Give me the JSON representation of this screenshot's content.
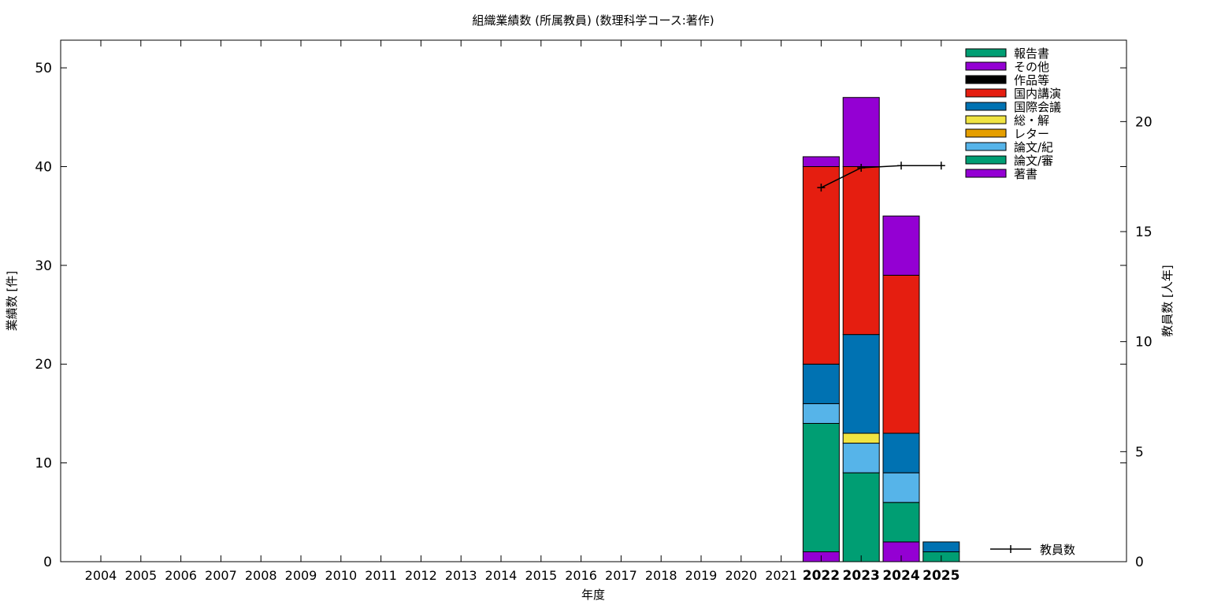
{
  "chart_data": {
    "type": "bar",
    "stacked": true,
    "title": "組織業績数 (所属教員) (数理科学コース:著作)",
    "xlabel": "年度",
    "ylabel": "業績数 [件]",
    "y2label": "教員数 [人年]",
    "ylim": [
      0,
      52.8
    ],
    "y2lim": [
      0,
      23.7
    ],
    "yticks": [
      "0",
      "10",
      "20",
      "30",
      "40",
      "50"
    ],
    "y2ticks": [
      "0",
      "5",
      "10",
      "15",
      "20"
    ],
    "grid": false,
    "legend_position": "top-right",
    "categories": [
      "2004",
      "2005",
      "2006",
      "2007",
      "2008",
      "2009",
      "2010",
      "2011",
      "2012",
      "2013",
      "2014",
      "2015",
      "2016",
      "2017",
      "2018",
      "2019",
      "2020",
      "2021",
      "2022",
      "2023",
      "2024",
      "2025"
    ],
    "bold_categories": [
      "2022",
      "2023",
      "2024",
      "2025"
    ],
    "series": [
      {
        "name": "著書",
        "color": "#9400d3",
        "values": [
          0,
          0,
          0,
          0,
          0,
          0,
          0,
          0,
          0,
          0,
          0,
          0,
          0,
          0,
          0,
          0,
          0,
          0,
          1,
          0,
          2,
          0
        ]
      },
      {
        "name": "論文/審",
        "color": "#009e73",
        "values": [
          0,
          0,
          0,
          0,
          0,
          0,
          0,
          0,
          0,
          0,
          0,
          0,
          0,
          0,
          0,
          0,
          0,
          0,
          13,
          9,
          4,
          1
        ]
      },
      {
        "name": "論文/紀",
        "color": "#56b4e9",
        "values": [
          0,
          0,
          0,
          0,
          0,
          0,
          0,
          0,
          0,
          0,
          0,
          0,
          0,
          0,
          0,
          0,
          0,
          0,
          2,
          3,
          3,
          0
        ]
      },
      {
        "name": "レター",
        "color": "#e69f00",
        "values": [
          0,
          0,
          0,
          0,
          0,
          0,
          0,
          0,
          0,
          0,
          0,
          0,
          0,
          0,
          0,
          0,
          0,
          0,
          0,
          0,
          0,
          0
        ]
      },
      {
        "name": "総・解",
        "color": "#f0e442",
        "values": [
          0,
          0,
          0,
          0,
          0,
          0,
          0,
          0,
          0,
          0,
          0,
          0,
          0,
          0,
          0,
          0,
          0,
          0,
          0,
          1,
          0,
          0
        ]
      },
      {
        "name": "国際会議",
        "color": "#0072b2",
        "values": [
          0,
          0,
          0,
          0,
          0,
          0,
          0,
          0,
          0,
          0,
          0,
          0,
          0,
          0,
          0,
          0,
          0,
          0,
          4,
          10,
          4,
          1
        ]
      },
      {
        "name": "国内講演",
        "color": "#e51e10",
        "values": [
          0,
          0,
          0,
          0,
          0,
          0,
          0,
          0,
          0,
          0,
          0,
          0,
          0,
          0,
          0,
          0,
          0,
          0,
          20,
          17,
          16,
          0
        ]
      },
      {
        "name": "作品等",
        "color": "#000000",
        "values": [
          0,
          0,
          0,
          0,
          0,
          0,
          0,
          0,
          0,
          0,
          0,
          0,
          0,
          0,
          0,
          0,
          0,
          0,
          0,
          0,
          0,
          0
        ]
      },
      {
        "name": "その他",
        "color": "#9400d3",
        "values": [
          0,
          0,
          0,
          0,
          0,
          0,
          0,
          0,
          0,
          0,
          0,
          0,
          0,
          0,
          0,
          0,
          0,
          0,
          1,
          7,
          6,
          0
        ]
      },
      {
        "name": "報告書",
        "color": "#009e73",
        "values": [
          0,
          0,
          0,
          0,
          0,
          0,
          0,
          0,
          0,
          0,
          0,
          0,
          0,
          0,
          0,
          0,
          0,
          0,
          0,
          0,
          0,
          0
        ]
      }
    ],
    "line_series": {
      "name": "教員数",
      "axis": "y2",
      "color": "#000000",
      "x": [
        "2022",
        "2023",
        "2024",
        "2025"
      ],
      "values": [
        17,
        17.9,
        18,
        18
      ]
    }
  }
}
